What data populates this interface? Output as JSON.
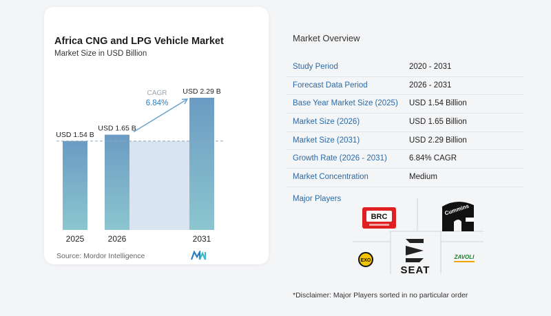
{
  "chart_data": {
    "type": "bar",
    "title": "Africa CNG and LPG Vehicle Market",
    "subtitle": "Market Size in USD Billion",
    "categories": [
      "2025",
      "2026",
      "2031"
    ],
    "values": [
      1.54,
      1.65,
      2.29
    ],
    "value_labels": [
      "USD 1.54 B",
      "USD 1.65 B",
      "USD 2.29 B"
    ],
    "ylim": [
      0,
      2.29
    ],
    "cagr_label": "CAGR",
    "cagr_value": "6.84%",
    "bar_color": "#6b9bc3",
    "bar_color_bottom": "#8cc6cf",
    "band_color": "#d8e4ef",
    "reference_line": "dashed",
    "grid": false,
    "source": "Source:  Mordor Intelligence"
  },
  "overview": {
    "title": "Market Overview",
    "rows": [
      {
        "label": "Study Period",
        "value": "2020 - 2031"
      },
      {
        "label": "Forecast Data Period",
        "value": "2026 - 2031"
      },
      {
        "label": "Base Year Market Size (2025)",
        "value": "USD 1.54 Billion"
      },
      {
        "label": "Market Size (2026)",
        "value": "USD 1.65 Billion"
      },
      {
        "label": "Market Size (2031)",
        "value": "USD 2.29 Billion"
      },
      {
        "label": "Growth Rate (2026 - 2031)",
        "value": "6.84% CAGR"
      },
      {
        "label": "Market Concentration",
        "value": "Medium"
      }
    ]
  },
  "players": {
    "title": "Major Players",
    "logos": [
      {
        "name": "BRC",
        "text": "BRC"
      },
      {
        "name": "Cummins",
        "text": "Cummins"
      },
      {
        "name": "Exoto",
        "text": "EXO"
      },
      {
        "name": "SEAT",
        "text": "SEAT"
      },
      {
        "name": "Zavoli",
        "text": "ZAVOLI"
      }
    ]
  },
  "disclaimer": "*Disclaimer: Major Players sorted in no particular order",
  "colors": {
    "accent": "#2a6aa7",
    "card": "#ffffff",
    "background": "#f4f5f7"
  }
}
